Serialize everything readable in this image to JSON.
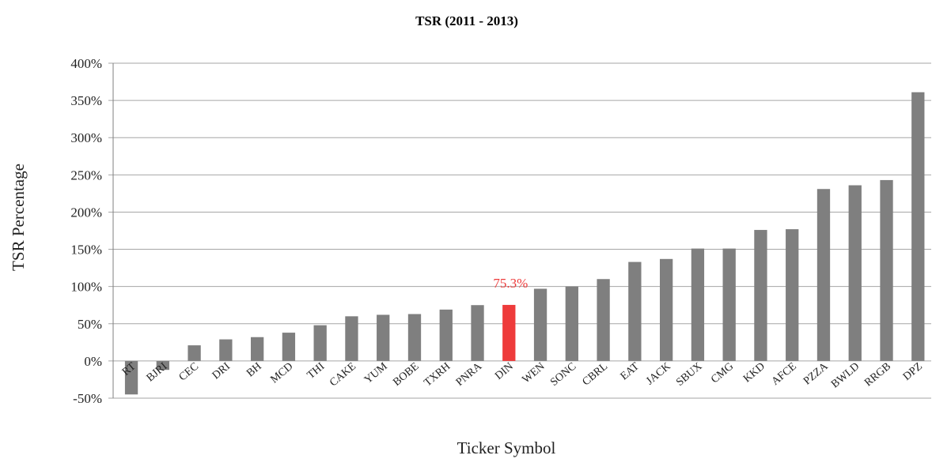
{
  "chart_data": {
    "type": "bar",
    "title": "TSR (2011 - 2013)",
    "xlabel": "Ticker Symbol",
    "ylabel": "TSR Percentage",
    "ylim": [
      -50,
      400
    ],
    "yticks": [
      -50,
      0,
      50,
      100,
      150,
      200,
      250,
      300,
      350,
      400
    ],
    "ytick_format": "percent",
    "grid": "horizontal",
    "legend": "none",
    "categories": [
      "RT",
      "BJRI",
      "CEC",
      "DRI",
      "BH",
      "MCD",
      "THI",
      "CAKE",
      "YUM",
      "BOBE",
      "TXRH",
      "PNRA",
      "DIN",
      "WEN",
      "SONC",
      "CBRL",
      "EAT",
      "JACK",
      "SBUX",
      "CMG",
      "KKD",
      "AFCE",
      "PZZA",
      "BWLD",
      "RRGB",
      "DPZ"
    ],
    "values": [
      -45,
      -12,
      21,
      29,
      32,
      38,
      48,
      60,
      62,
      63,
      69,
      75,
      75.3,
      97,
      100,
      110,
      133,
      137,
      151,
      151,
      176,
      177,
      231,
      236,
      243,
      361
    ],
    "colors": {
      "default": "#7f7f7f",
      "highlight": "#ee3b3b",
      "grid": "#a6a6a6",
      "axis": "#7f7f7f"
    },
    "highlight": {
      "category": "DIN",
      "label": "75.3%"
    }
  }
}
